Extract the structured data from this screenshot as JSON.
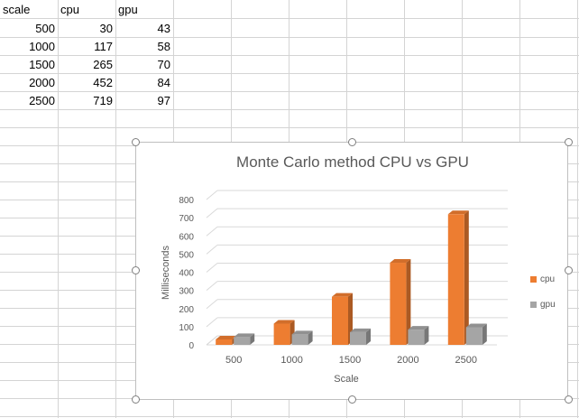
{
  "sheet": {
    "headers": [
      "scale",
      "cpu",
      "gpu"
    ],
    "rows": [
      [
        "500",
        "30",
        "43"
      ],
      [
        "1000",
        "117",
        "58"
      ],
      [
        "1500",
        "265",
        "70"
      ],
      [
        "2000",
        "452",
        "84"
      ],
      [
        "2500",
        "719",
        "97"
      ]
    ]
  },
  "chart_data": {
    "type": "bar",
    "title": "Monte Carlo method CPU vs GPU",
    "xlabel": "Scale",
    "ylabel": "Milliseconds",
    "categories": [
      "500",
      "1000",
      "1500",
      "2000",
      "2500"
    ],
    "series": [
      {
        "name": "cpu",
        "values": [
          30,
          117,
          265,
          452,
          719
        ],
        "color": "#ed7d31"
      },
      {
        "name": "gpu",
        "values": [
          43,
          58,
          70,
          84,
          97
        ],
        "color": "#a5a5a5"
      }
    ],
    "ylim": [
      0,
      800
    ],
    "yticks": [
      "0",
      "100",
      "200",
      "300",
      "400",
      "500",
      "600",
      "700",
      "800"
    ],
    "grid": true,
    "style": "3d-clustered",
    "legend": "right"
  }
}
